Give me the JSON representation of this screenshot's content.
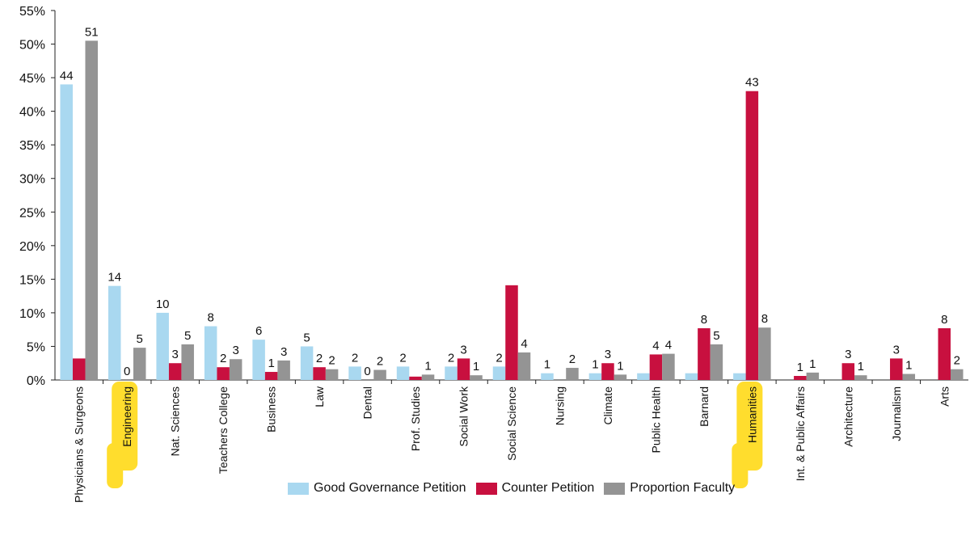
{
  "chart_data": {
    "type": "bar",
    "title": "",
    "xlabel": "",
    "ylabel": "",
    "ylim": [
      0,
      55
    ],
    "y_ticks": [
      "0%",
      "5%",
      "10%",
      "15%",
      "20%",
      "25%",
      "30%",
      "35%",
      "40%",
      "45%",
      "50%",
      "55%"
    ],
    "grid": false,
    "legend_position": "bottom",
    "categories": [
      "Physicians & Surgeons",
      "Engineering",
      "Nat. Sciences",
      "Teachers College",
      "Business",
      "Law",
      "Dental",
      "Prof. Studies",
      "Social Work",
      "Social Science",
      "Nursing",
      "Climate",
      "Public Health",
      "Barnard",
      "Humanities",
      "Int. & Public Affairs",
      "Architecture",
      "Journalism",
      "Arts"
    ],
    "highlighted_categories": [
      "Engineering",
      "Humanities"
    ],
    "highlight_color": "#ffd600",
    "series": [
      {
        "name": "Good Governance Petition",
        "color": "#a9d8f0",
        "values": [
          44,
          14,
          10,
          8,
          6,
          5,
          2,
          2,
          2,
          2,
          1,
          1,
          1,
          1,
          1,
          0,
          0,
          0,
          0
        ],
        "labels": [
          "44",
          "14",
          "10",
          "8",
          "6",
          "5",
          "2",
          "2",
          "2",
          "2",
          "1",
          "1",
          "",
          "",
          "",
          "",
          "",
          "",
          ""
        ]
      },
      {
        "name": "Counter Petition",
        "color": "#c8103f",
        "values": [
          3.2,
          0,
          2.5,
          1.9,
          1.2,
          1.9,
          0,
          0.5,
          3.2,
          14.1,
          0,
          2.5,
          3.8,
          7.7,
          43,
          0.6,
          2.5,
          3.2,
          7.7
        ],
        "labels": [
          "",
          "0",
          "3",
          "2",
          "1",
          "2",
          "0",
          "",
          "3",
          "",
          "",
          "3",
          "4",
          "8",
          "43",
          "1",
          "3",
          "3",
          "8"
        ]
      },
      {
        "name": "Proportion Faculty",
        "color": "#949494",
        "values": [
          50.5,
          4.8,
          5.3,
          3.1,
          2.9,
          1.6,
          1.5,
          0.8,
          0.7,
          4.1,
          1.8,
          0.8,
          3.9,
          5.3,
          7.8,
          1.1,
          0.7,
          0.9,
          1.6
        ],
        "labels": [
          "51",
          "5",
          "5",
          "3",
          "3",
          "2",
          "2",
          "1",
          "1",
          "4",
          "2",
          "1",
          "4",
          "5",
          "8",
          "1",
          "1",
          "1",
          "2"
        ]
      }
    ]
  }
}
